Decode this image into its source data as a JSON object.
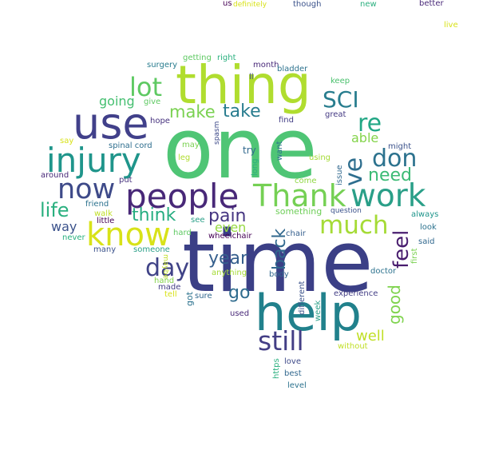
{
  "words": [
    {
      "text": "time",
      "color": "#3b3f86"
    },
    {
      "text": "one",
      "color": "#4fc575"
    },
    {
      "text": "thing",
      "color": "#b0dd2f"
    },
    {
      "text": "help",
      "color": "#21818c"
    },
    {
      "text": "use",
      "color": "#41408a"
    },
    {
      "text": "people",
      "color": "#482878"
    },
    {
      "text": "know",
      "color": "#d8e219"
    },
    {
      "text": "injury",
      "color": "#1f958b"
    },
    {
      "text": "Thank",
      "color": "#75d054"
    },
    {
      "text": "work",
      "color": "#2a9f88"
    },
    {
      "text": "now",
      "color": "#3e4a89"
    },
    {
      "text": "still",
      "color": "#433e85"
    },
    {
      "text": "SCI",
      "color": "#287d8e"
    },
    {
      "text": "lot",
      "color": "#5ec962"
    },
    {
      "text": "don",
      "color": "#2c728e"
    },
    {
      "text": "much",
      "color": "#a5db36"
    },
    {
      "text": "re",
      "color": "#22a785"
    },
    {
      "text": "ve",
      "color": "#2e6e8e"
    },
    {
      "text": "day",
      "color": "#404387"
    },
    {
      "text": "feel",
      "color": "#481c6e"
    },
    {
      "text": "back",
      "color": "#31688e"
    },
    {
      "text": "life",
      "color": "#2ab07f"
    },
    {
      "text": "make",
      "color": "#7ad151"
    },
    {
      "text": "take",
      "color": "#287c8e"
    },
    {
      "text": "need",
      "color": "#3cbb75"
    },
    {
      "text": "think",
      "color": "#26ad81"
    },
    {
      "text": "pain",
      "color": "#453581"
    },
    {
      "text": "year",
      "color": "#355f8d"
    },
    {
      "text": "go",
      "color": "#2f6c8e"
    },
    {
      "text": "good",
      "color": "#7fd34e"
    },
    {
      "text": "well",
      "color": "#c0df25"
    },
    {
      "text": "going",
      "color": "#44bf70"
    },
    {
      "text": "way",
      "color": "#3b528b"
    },
    {
      "text": "even",
      "color": "#95d840"
    },
    {
      "text": "able",
      "color": "#84d44b"
    },
    {
      "text": "try",
      "color": "#31688e"
    },
    {
      "text": "spinal cord",
      "color": "#2e6e8e"
    },
    {
      "text": "say",
      "color": "#d8e219"
    },
    {
      "text": "hope",
      "color": "#46327e"
    },
    {
      "text": "give",
      "color": "#5ec962"
    },
    {
      "text": "surgery",
      "color": "#287c8e"
    },
    {
      "text": "getting",
      "color": "#5ec962"
    },
    {
      "text": "right",
      "color": "#2ab07f"
    },
    {
      "text": "month",
      "color": "#482878"
    },
    {
      "text": "bladder",
      "color": "#2c728e"
    },
    {
      "text": "ll",
      "color": "#3e4a89"
    },
    {
      "text": "keep",
      "color": "#4ac16d"
    },
    {
      "text": "find",
      "color": "#433e85"
    },
    {
      "text": "great",
      "color": "#443983"
    },
    {
      "text": "spasm",
      "color": "#3e4a89"
    },
    {
      "text": "may",
      "color": "#7ad151"
    },
    {
      "text": "leg",
      "color": "#b0dd2f"
    },
    {
      "text": "want",
      "color": "#2c728e"
    },
    {
      "text": "long",
      "color": "#2ab07f"
    },
    {
      "text": "using",
      "color": "#a5db36"
    },
    {
      "text": "issue",
      "color": "#31688e"
    },
    {
      "text": "might",
      "color": "#3b528b"
    },
    {
      "text": "come",
      "color": "#8fd744"
    },
    {
      "text": "around",
      "color": "#482878"
    },
    {
      "text": "put",
      "color": "#46327e"
    },
    {
      "text": "friend",
      "color": "#2c728e"
    },
    {
      "text": "walk",
      "color": "#c0df25"
    },
    {
      "text": "little",
      "color": "#440154"
    },
    {
      "text": "never",
      "color": "#2ab07f"
    },
    {
      "text": "see",
      "color": "#2a9f88"
    },
    {
      "text": "hard",
      "color": "#5ec962"
    },
    {
      "text": "something",
      "color": "#6ece58"
    },
    {
      "text": "question",
      "color": "#3b528b"
    },
    {
      "text": "chair",
      "color": "#355f8d"
    },
    {
      "text": "always",
      "color": "#1f958b"
    },
    {
      "text": "look",
      "color": "#2c728e"
    },
    {
      "text": "first",
      "color": "#7ad151"
    },
    {
      "text": "said",
      "color": "#31688e"
    },
    {
      "text": "wheelchair",
      "color": "#440154"
    },
    {
      "text": "many",
      "color": "#3b528b"
    },
    {
      "text": "someone",
      "color": "#2a9f88"
    },
    {
      "text": "maybe",
      "color": "#c0df25"
    },
    {
      "text": "hand",
      "color": "#84d44b"
    },
    {
      "text": "made",
      "color": "#433e85"
    },
    {
      "text": "anything",
      "color": "#a5db36"
    },
    {
      "text": "body",
      "color": "#31688e"
    },
    {
      "text": "doctor",
      "color": "#2c728e"
    },
    {
      "text": "tell",
      "color": "#d8e219"
    },
    {
      "text": "got",
      "color": "#2c728e"
    },
    {
      "text": "sure",
      "color": "#31688e"
    },
    {
      "text": "different",
      "color": "#3b528b"
    },
    {
      "text": "experience",
      "color": "#433e85"
    },
    {
      "text": "used",
      "color": "#482878"
    },
    {
      "text": "week",
      "color": "#2a9f88"
    },
    {
      "text": "without",
      "color": "#c0df25"
    },
    {
      "text": "love",
      "color": "#3e4a89"
    },
    {
      "text": "https",
      "color": "#2ab07f"
    },
    {
      "text": "best",
      "color": "#31688e"
    },
    {
      "text": "level",
      "color": "#2c728e"
    },
    {
      "text": "us",
      "color": "#440154"
    },
    {
      "text": "definitely",
      "color": "#d8e219"
    },
    {
      "text": "though",
      "color": "#3b528b"
    },
    {
      "text": "new",
      "color": "#2ab07f"
    },
    {
      "text": "better",
      "color": "#482878"
    },
    {
      "text": "live",
      "color": "#d8e219"
    }
  ]
}
